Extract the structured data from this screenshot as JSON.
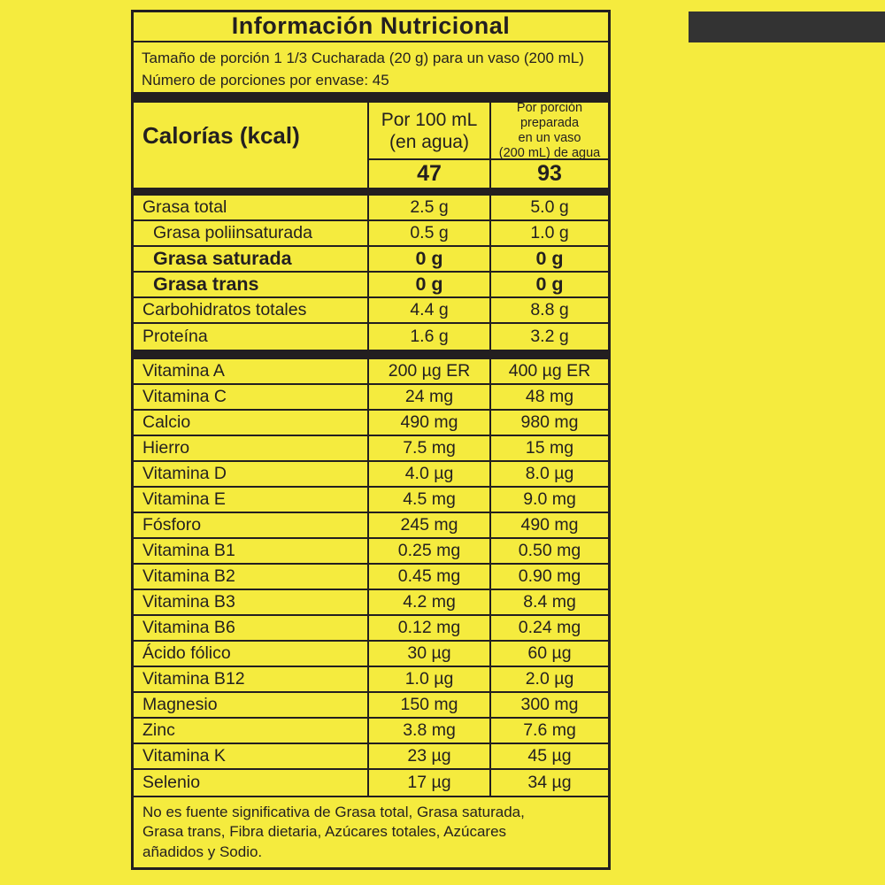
{
  "colors": {
    "background_yellow": "#F5EB3E",
    "ink_black": "#231F20",
    "top_bar_gray": "#333333"
  },
  "panel": {
    "title": "Información Nutricional",
    "serving": {
      "line1": "Tamaño de porción 1 1/3 Cucharada (20 g) para un vaso (200 mL)",
      "line2": "Número de porciones por envase: 45"
    },
    "columns": {
      "per_100ml_header": "Por 100 mL\n(en agua)",
      "per_portion_header": "Por porción\npreparada\nen un vaso\n(200 mL) de agua"
    },
    "calories": {
      "label": "Calorías (kcal)",
      "per_100ml": "47",
      "per_portion": "93"
    },
    "macro_rows": [
      {
        "label": "Grasa total",
        "per_100ml": "2.5 g",
        "per_portion": "5.0 g",
        "bold": false,
        "indent": false
      },
      {
        "label": "Grasa poliinsaturada",
        "per_100ml": "0.5 g",
        "per_portion": "1.0 g",
        "bold": false,
        "indent": true
      },
      {
        "label": "Grasa saturada",
        "per_100ml": "0 g",
        "per_portion": "0 g",
        "bold": true,
        "indent": true
      },
      {
        "label": "Grasa trans",
        "per_100ml": "0 g",
        "per_portion": "0 g",
        "bold": true,
        "indent": true
      },
      {
        "label": "Carbohidratos totales",
        "per_100ml": "4.4 g",
        "per_portion": "8.8 g",
        "bold": false,
        "indent": false
      },
      {
        "label": "Proteína",
        "per_100ml": "1.6 g",
        "per_portion": "3.2 g",
        "bold": false,
        "indent": false
      }
    ],
    "micro_rows": [
      {
        "label": "Vitamina A",
        "per_100ml": "200 µg ER",
        "per_portion": "400 µg ER",
        "bold": false,
        "indent": false
      },
      {
        "label": "Vitamina C",
        "per_100ml": "24 mg",
        "per_portion": "48 mg",
        "bold": false,
        "indent": false
      },
      {
        "label": "Calcio",
        "per_100ml": "490 mg",
        "per_portion": "980 mg",
        "bold": false,
        "indent": false
      },
      {
        "label": "Hierro",
        "per_100ml": "7.5 mg",
        "per_portion": "15 mg",
        "bold": false,
        "indent": false
      },
      {
        "label": "Vitamina D",
        "per_100ml": "4.0 µg",
        "per_portion": "8.0 µg",
        "bold": false,
        "indent": false
      },
      {
        "label": "Vitamina E",
        "per_100ml": "4.5 mg",
        "per_portion": "9.0 mg",
        "bold": false,
        "indent": false
      },
      {
        "label": "Fósforo",
        "per_100ml": "245 mg",
        "per_portion": "490 mg",
        "bold": false,
        "indent": false
      },
      {
        "label": "Vitamina B1",
        "per_100ml": "0.25 mg",
        "per_portion": "0.50 mg",
        "bold": false,
        "indent": false
      },
      {
        "label": "Vitamina B2",
        "per_100ml": "0.45 mg",
        "per_portion": "0.90 mg",
        "bold": false,
        "indent": false
      },
      {
        "label": "Vitamina B3",
        "per_100ml": "4.2 mg",
        "per_portion": "8.4 mg",
        "bold": false,
        "indent": false
      },
      {
        "label": "Vitamina B6",
        "per_100ml": "0.12 mg",
        "per_portion": "0.24 mg",
        "bold": false,
        "indent": false
      },
      {
        "label": "Ácido fólico",
        "per_100ml": "30 µg",
        "per_portion": "60 µg",
        "bold": false,
        "indent": false
      },
      {
        "label": "Vitamina B12",
        "per_100ml": "1.0 µg",
        "per_portion": "2.0 µg",
        "bold": false,
        "indent": false
      },
      {
        "label": "Magnesio",
        "per_100ml": "150 mg",
        "per_portion": "300 mg",
        "bold": false,
        "indent": false
      },
      {
        "label": "Zinc",
        "per_100ml": "3.8 mg",
        "per_portion": "7.6 mg",
        "bold": false,
        "indent": false
      },
      {
        "label": "Vitamina K",
        "per_100ml": "23 µg",
        "per_portion": "45 µg",
        "bold": false,
        "indent": false
      },
      {
        "label": "Selenio",
        "per_100ml": "17 µg",
        "per_portion": "34 µg",
        "bold": false,
        "indent": false
      }
    ],
    "footnote": "No es fuente significativa de Grasa total,  Grasa saturada,\nGrasa trans, Fibra dietaria, Azúcares totales, Azúcares\nañadidos y Sodio."
  }
}
